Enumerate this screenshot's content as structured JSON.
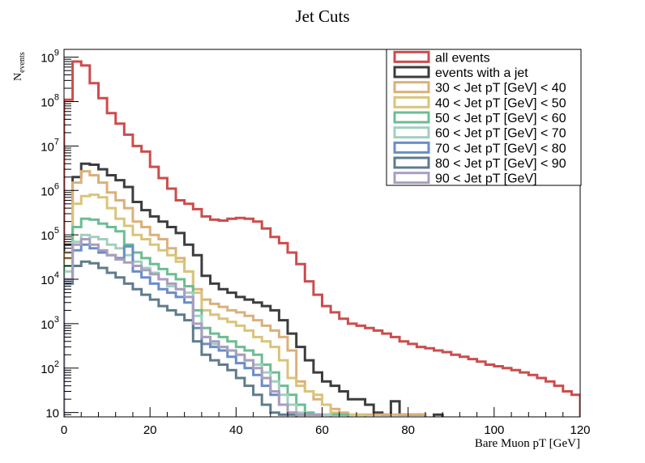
{
  "chart_data": {
    "type": "line",
    "title": "Jet Cuts",
    "xlabel": "Bare Muon pT [GeV]",
    "ylabel_main": "N",
    "ylabel_sub": "events",
    "xlim": [
      0,
      120
    ],
    "ylim": [
      8,
      1500000000
    ],
    "log_y": true,
    "bin_width": 2,
    "grid": false,
    "legend_position": "top-right",
    "x_ticks": [
      "0",
      "20",
      "40",
      "60",
      "80",
      "100",
      "120"
    ],
    "y_ticks": [
      {
        "base": "10",
        "exp": ""
      },
      {
        "base": "10",
        "exp": "2"
      },
      {
        "base": "10",
        "exp": "3"
      },
      {
        "base": "10",
        "exp": "4"
      },
      {
        "base": "10",
        "exp": "5"
      },
      {
        "base": "10",
        "exp": "6"
      },
      {
        "base": "10",
        "exp": "7"
      },
      {
        "base": "10",
        "exp": "8"
      },
      {
        "base": "10",
        "exp": "9"
      }
    ],
    "series": [
      {
        "name": "all events",
        "color": "#cc4c4c",
        "values": [
          110000000.0,
          800000000.0,
          650000000.0,
          260000000.0,
          120000000.0,
          55000000.0,
          32000000.0,
          18000000.0,
          10000000.0,
          7500000.0,
          3400000.0,
          1900000.0,
          1100000.0,
          600000.0,
          500000.0,
          380000.0,
          260000.0,
          220000.0,
          210000.0,
          230000.0,
          240000.0,
          230000.0,
          200000.0,
          140000.0,
          90000.0,
          65000.0,
          40000.0,
          22000.0,
          9000.0,
          4500.0,
          2500.0,
          1800.0,
          1300.0,
          1000.0,
          900,
          800,
          700,
          600,
          500,
          400,
          350,
          300,
          280,
          250,
          230,
          200,
          180,
          160,
          140,
          120,
          110,
          100,
          90,
          80,
          70,
          60,
          50,
          40,
          30,
          25
        ]
      },
      {
        "name": "events with a jet",
        "color": "#3d3d3d",
        "values": [
          60000.0,
          2000000.0,
          4000000.0,
          3800000.0,
          3000000.0,
          2200000.0,
          1700000.0,
          1200000.0,
          550000.0,
          360000.0,
          260000.0,
          200000.0,
          150000.0,
          110000.0,
          60000.0,
          35000.0,
          12000.0,
          8000.0,
          6000.0,
          5000.0,
          4000.0,
          3500.0,
          3000.0,
          2500.0,
          2000.0,
          1200.0,
          600,
          300,
          150,
          80,
          50,
          40,
          30,
          20,
          20,
          15,
          10,
          9,
          18,
          9,
          9,
          9,
          null,
          9,
          null,
          null,
          null,
          null,
          null,
          null,
          null,
          null,
          null,
          null,
          null,
          null,
          null,
          null,
          null,
          null
        ]
      },
      {
        "name": "30 < Jet pT [GeV] < 40",
        "color": "#dbb07a",
        "values": [
          40000.0,
          1500000.0,
          2700000.0,
          2200000.0,
          1500000.0,
          900000.0,
          600000.0,
          400000.0,
          200000.0,
          150000.0,
          100000.0,
          80000.0,
          50000.0,
          30000.0,
          15000.0,
          6000.0,
          3500.0,
          2800.0,
          2400.0,
          2000.0,
          1800.0,
          1500.0,
          1200.0,
          900,
          700,
          500,
          250,
          50,
          30,
          20,
          15,
          12,
          10,
          9,
          9,
          9,
          9,
          9,
          9,
          9,
          9,
          9,
          null,
          null,
          null,
          null,
          null,
          null,
          null,
          null,
          null,
          null,
          null,
          null,
          null,
          null,
          null,
          null,
          null,
          null
        ]
      },
      {
        "name": "40 < Jet pT [GeV] < 50",
        "color": "#d9c479",
        "values": [
          30000.0,
          500000.0,
          750000.0,
          800000.0,
          700000.0,
          400000.0,
          230000.0,
          160000.0,
          100000.0,
          80000.0,
          60000.0,
          45000.0,
          35000.0,
          25000.0,
          15000.0,
          5000.0,
          2000.0,
          1600.0,
          1300.0,
          1100.0,
          900,
          700,
          500,
          400,
          300,
          150,
          60,
          40,
          30,
          25,
          15,
          10,
          9,
          9,
          9,
          null,
          null,
          null,
          null,
          null,
          null,
          null,
          null,
          null,
          null,
          null,
          null,
          null,
          null,
          null,
          null,
          null,
          null,
          null,
          null,
          null,
          null,
          null,
          null,
          null
        ]
      },
      {
        "name": "50 < Jet pT [GeV] < 60",
        "color": "#6cbd93",
        "values": [
          20000.0,
          150000.0,
          230000.0,
          220000.0,
          180000.0,
          150000.0,
          120000.0,
          60000.0,
          40000.0,
          30000.0,
          22000.0,
          17000.0,
          13000.0,
          10000.0,
          7000.0,
          2000.0,
          800,
          600,
          500,
          400,
          300,
          250,
          200,
          120,
          80,
          40,
          25,
          15,
          10,
          9,
          9,
          9,
          9,
          null,
          null,
          null,
          null,
          null,
          null,
          null,
          null,
          null,
          null,
          null,
          null,
          null,
          null,
          null,
          null,
          null,
          null,
          null,
          null,
          null,
          null,
          null,
          null,
          null,
          null,
          null
        ]
      },
      {
        "name": "60 < Jet pT [GeV] < 70",
        "color": "#a2cfbf",
        "values": [
          15000.0,
          70000.0,
          100000.0,
          90000.0,
          80000.0,
          60000.0,
          50000.0,
          35000.0,
          25000.0,
          18000.0,
          14000.0,
          10000.0,
          7000.0,
          6000.0,
          5000.0,
          1500.0,
          500,
          350,
          300,
          250,
          200,
          150,
          120,
          80,
          50,
          25,
          15,
          10,
          9,
          9,
          9,
          null,
          null,
          null,
          null,
          null,
          null,
          null,
          null,
          null,
          null,
          null,
          null,
          null,
          null,
          null,
          null,
          null,
          null,
          null,
          null,
          null,
          null,
          null,
          null,
          null,
          null,
          null,
          null,
          null
        ]
      },
      {
        "name": "70 < Jet pT [GeV] < 80",
        "color": "#6a8dca",
        "values": [
          10000.0,
          45000.0,
          60000.0,
          50000.0,
          40000.0,
          35000.0,
          30000.0,
          55000.0,
          15000.0,
          11000.0,
          8000.0,
          6000.0,
          5000.0,
          4000.0,
          3000.0,
          800,
          350,
          300,
          250,
          180,
          130,
          100,
          70,
          40,
          25,
          15,
          10,
          9,
          9,
          9,
          null,
          null,
          null,
          null,
          null,
          null,
          null,
          null,
          null,
          null,
          null,
          null,
          null,
          null,
          null,
          null,
          null,
          null,
          null,
          null,
          null,
          null,
          null,
          null,
          null,
          null,
          null,
          null,
          null,
          null
        ]
      },
      {
        "name": "80 < Jet pT [GeV] < 90",
        "color": "#5e7c8c",
        "values": [
          8000.0,
          20000.0,
          25000.0,
          23000.0,
          18000.0,
          14000.0,
          11000.0,
          8000.0,
          6000.0,
          4500.0,
          3500.0,
          2500.0,
          2000.0,
          1600.0,
          1200.0,
          400,
          200,
          150,
          120,
          90,
          60,
          40,
          25,
          15,
          10,
          9,
          9,
          null,
          null,
          null,
          null,
          null,
          null,
          null,
          null,
          null,
          null,
          null,
          null,
          null,
          null,
          null,
          null,
          null,
          null,
          null,
          null,
          null,
          null,
          null,
          null,
          null,
          null,
          null,
          null,
          null,
          null,
          null,
          null,
          null
        ]
      },
      {
        "name": "90 < Jet pT [GeV]",
        "color": "#a99ebf",
        "values": [
          10000.0,
          60000.0,
          80000.0,
          60000.0,
          45000.0,
          35000.0,
          28000.0,
          24000.0,
          20000.0,
          16000.0,
          13000.0,
          10000.0,
          8000.0,
          6000.0,
          4000.0,
          1000.0,
          500,
          400,
          300,
          250,
          200,
          150,
          100,
          60,
          30,
          15,
          10,
          9,
          9,
          9,
          null,
          null,
          null,
          null,
          null,
          null,
          null,
          null,
          null,
          null,
          null,
          null,
          null,
          null,
          null,
          null,
          null,
          null,
          null,
          null,
          null,
          null,
          null,
          null,
          null,
          null,
          null,
          null,
          null,
          null
        ]
      }
    ]
  }
}
